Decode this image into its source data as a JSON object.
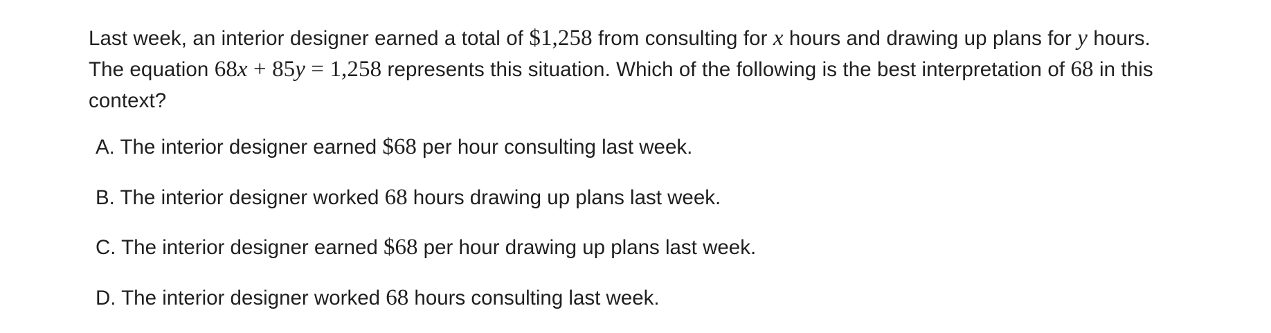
{
  "question": {
    "part1": "Last week, an interior designer earned a total of ",
    "math_total": "$1,258",
    "part2": " from consulting for ",
    "var_x": "x",
    "part3": " hours and drawing up plans for ",
    "var_y": "y",
    "part4": " hours. The equation ",
    "eq_68": "68",
    "eq_x": "x",
    "eq_plus": " + 85",
    "eq_y": "y",
    "eq_rhs": " = 1,258",
    "part5": " represents this situation. Which of the following is the best interpretation of ",
    "math_68": "68",
    "part6": " in this context?"
  },
  "choices": [
    {
      "letter": "A.",
      "before": " The interior designer earned ",
      "math": "$68",
      "after": " per hour consulting last week."
    },
    {
      "letter": "B.",
      "before": " The interior designer worked ",
      "math": "68",
      "after": " hours drawing up plans last week."
    },
    {
      "letter": "C.",
      "before": " The interior designer earned ",
      "math": "$68",
      "after": " per hour drawing up plans last week."
    },
    {
      "letter": "D.",
      "before": " The interior designer worked ",
      "math": "68",
      "after": " hours consulting last week."
    }
  ]
}
